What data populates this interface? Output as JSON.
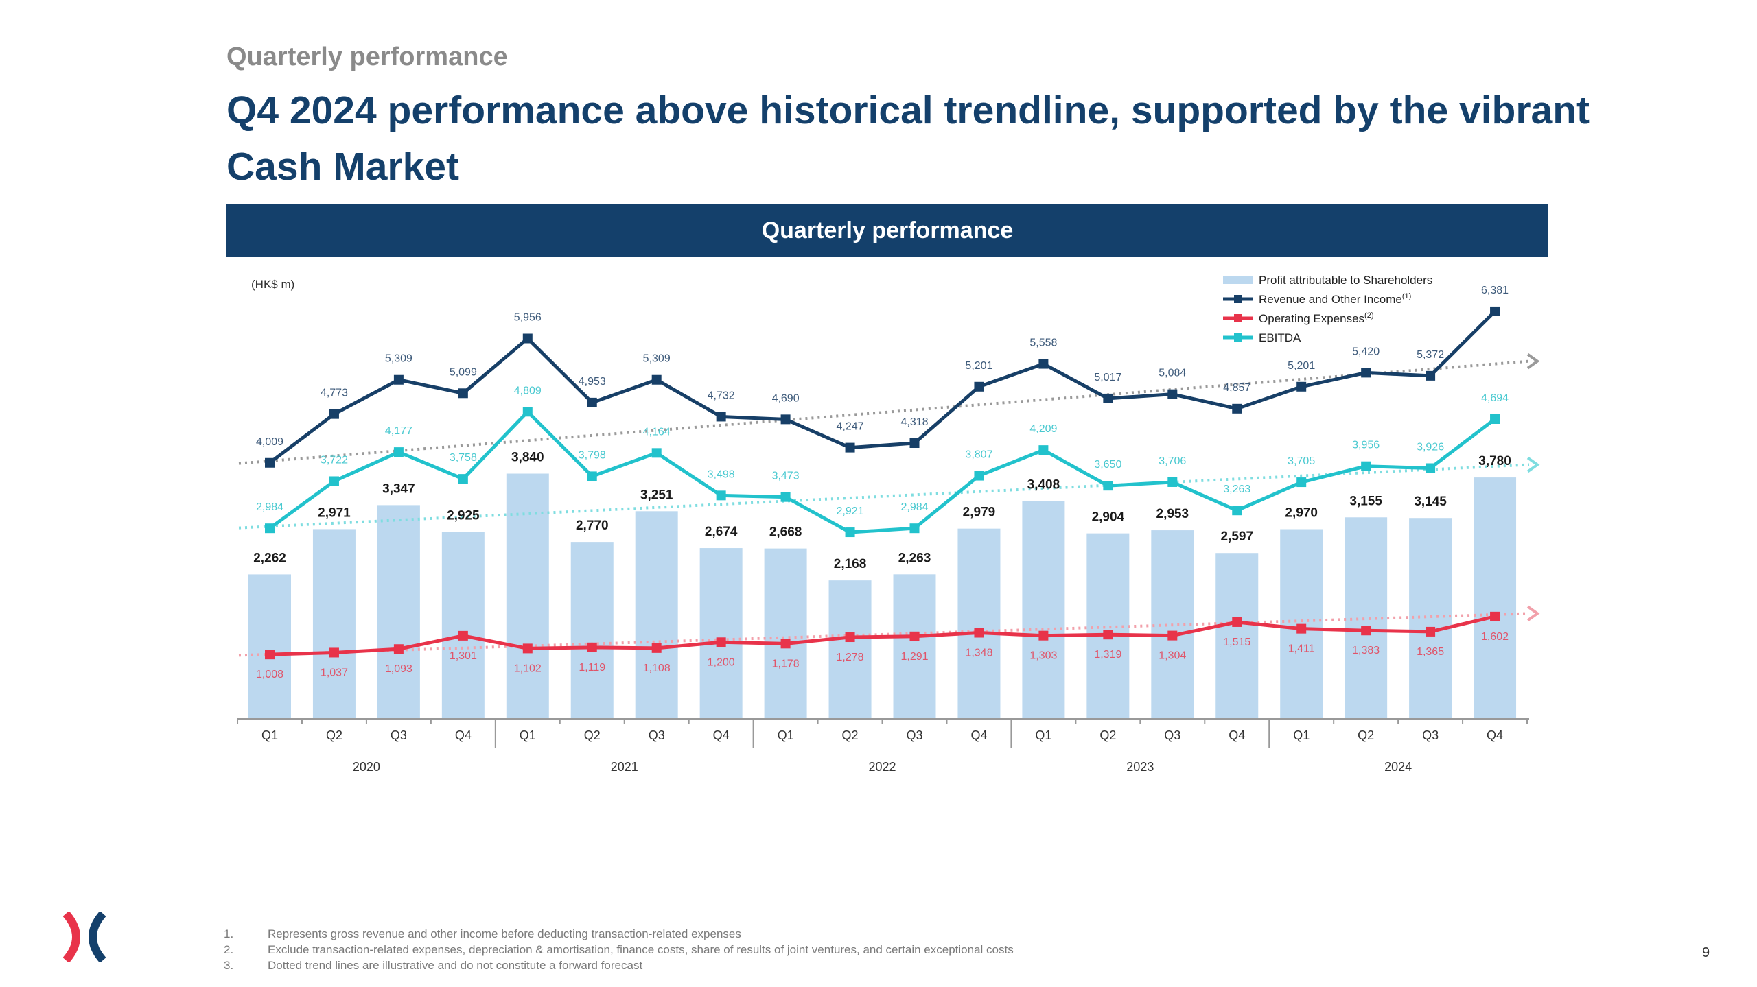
{
  "header": {
    "kicker": "Quarterly performance",
    "title": "Q4 2024 performance above historical trendline, supported by the vibrant Cash Market",
    "banner": "Quarterly performance"
  },
  "colors": {
    "navy": "#14406b",
    "bar": "#bcd8ef",
    "revenue": "#173f67",
    "opex": "#e8334a",
    "ebitda": "#22c2cc",
    "trend_revenue": "#9a9a9a",
    "trend_ebitda": "#7fdde0",
    "trend_opex": "#f2a0aa"
  },
  "chart_data": {
    "type": "bar",
    "unit_label": "(HK$ m)",
    "categories": [
      "Q1",
      "Q2",
      "Q3",
      "Q4",
      "Q1",
      "Q2",
      "Q3",
      "Q4",
      "Q1",
      "Q2",
      "Q3",
      "Q4",
      "Q1",
      "Q2",
      "Q3",
      "Q4",
      "Q1",
      "Q2",
      "Q3",
      "Q4"
    ],
    "years": [
      "2020",
      "2021",
      "2022",
      "2023",
      "2024"
    ],
    "series": [
      {
        "name": "Profit attributable to Shareholders",
        "kind": "bar",
        "values": [
          2262,
          2971,
          3347,
          2925,
          3840,
          2770,
          3251,
          2674,
          2668,
          2168,
          2263,
          2979,
          3408,
          2904,
          2953,
          2597,
          2970,
          3155,
          3145,
          3780
        ]
      },
      {
        "name": "Revenue and Other Income",
        "superscript": "(1)",
        "kind": "line",
        "values": [
          4009,
          4773,
          5309,
          5099,
          5956,
          4953,
          5309,
          4732,
          4690,
          4247,
          4318,
          5201,
          5558,
          5017,
          5084,
          4857,
          5201,
          5420,
          5372,
          6381
        ]
      },
      {
        "name": "Operating Expenses",
        "superscript": "(2)",
        "kind": "line",
        "values": [
          1008,
          1037,
          1093,
          1301,
          1102,
          1119,
          1108,
          1200,
          1178,
          1278,
          1291,
          1348,
          1303,
          1319,
          1304,
          1515,
          1411,
          1383,
          1365,
          1602
        ]
      },
      {
        "name": "EBITDA",
        "kind": "line",
        "values": [
          2984,
          3722,
          4177,
          3758,
          4809,
          3798,
          4164,
          3498,
          3473,
          2921,
          2984,
          3807,
          4209,
          3650,
          3706,
          3263,
          3705,
          3956,
          3926,
          4694
        ]
      }
    ],
    "trendlines": [
      {
        "series": "Revenue and Other Income",
        "start": 4000,
        "end": 5600,
        "style": "dotted"
      },
      {
        "series": "EBITDA",
        "start": 2990,
        "end": 3980,
        "style": "dotted"
      },
      {
        "series": "Operating Expenses",
        "start": 995,
        "end": 1650,
        "style": "dotted"
      }
    ],
    "ylim": [
      0,
      7000
    ],
    "title": "Quarterly performance",
    "xlabel": "",
    "ylabel": "(HK$ m)",
    "grid": false,
    "legend": "top-right"
  },
  "footnotes": [
    {
      "num": "1.",
      "text": "Represents gross revenue and other income before deducting transaction-related expenses"
    },
    {
      "num": "2.",
      "text": "Exclude transaction-related expenses, depreciation & amortisation, finance costs, share of results of joint ventures, and certain exceptional costs"
    },
    {
      "num": "3.",
      "text": "Dotted trend lines are illustrative and do not constitute a forward forecast"
    }
  ],
  "page_number": "9"
}
